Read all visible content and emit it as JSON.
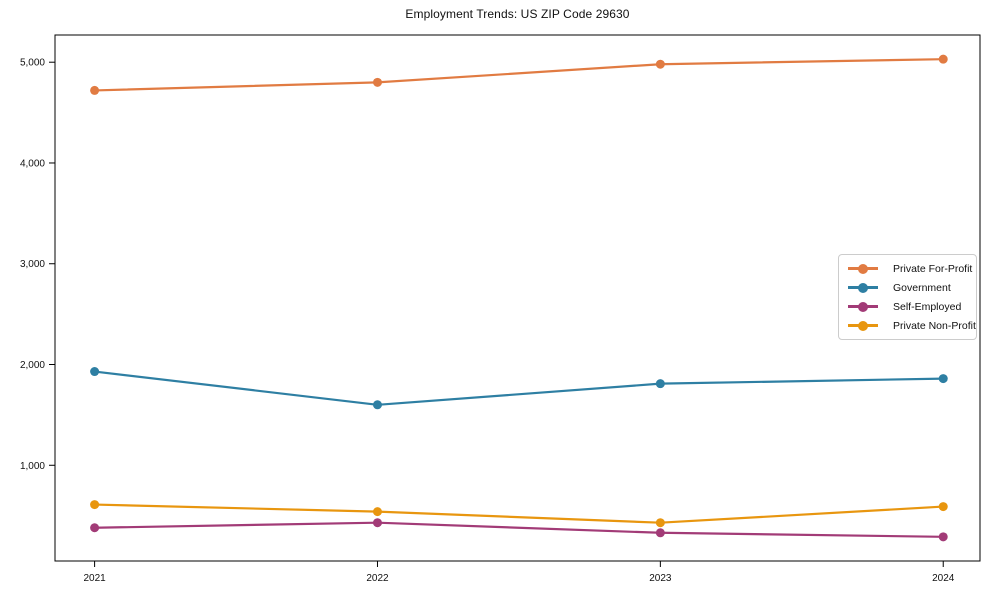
{
  "chart_data": {
    "type": "line",
    "title": "Employment Trends: US ZIP Code 29630",
    "x": [
      2021,
      2022,
      2023,
      2024
    ],
    "x_tick_labels": [
      "2021",
      "2022",
      "2023",
      "2024"
    ],
    "y_ticks": [
      1000,
      2000,
      3000,
      4000,
      5000
    ],
    "y_tick_labels": [
      "1,000",
      "2,000",
      "3,000",
      "4,000",
      "5,000"
    ],
    "xlim": [
      2020.86,
      2024.13
    ],
    "ylim": [
      50,
      5270
    ],
    "grid": false,
    "legend_position": "center-right",
    "xlabel": "",
    "ylabel": "",
    "series": [
      {
        "name": "Private For-Profit",
        "color": "#e17b42",
        "values": [
          4720,
          4800,
          4980,
          5030
        ]
      },
      {
        "name": "Government",
        "color": "#2e7fa3",
        "values": [
          1930,
          1600,
          1810,
          1860
        ]
      },
      {
        "name": "Self-Employed",
        "color": "#a23b77",
        "values": [
          380,
          430,
          330,
          290
        ]
      },
      {
        "name": "Private Non-Profit",
        "color": "#e8960f",
        "values": [
          610,
          540,
          430,
          590
        ]
      }
    ],
    "frame_color": "#000000",
    "background_color": "#ffffff"
  }
}
